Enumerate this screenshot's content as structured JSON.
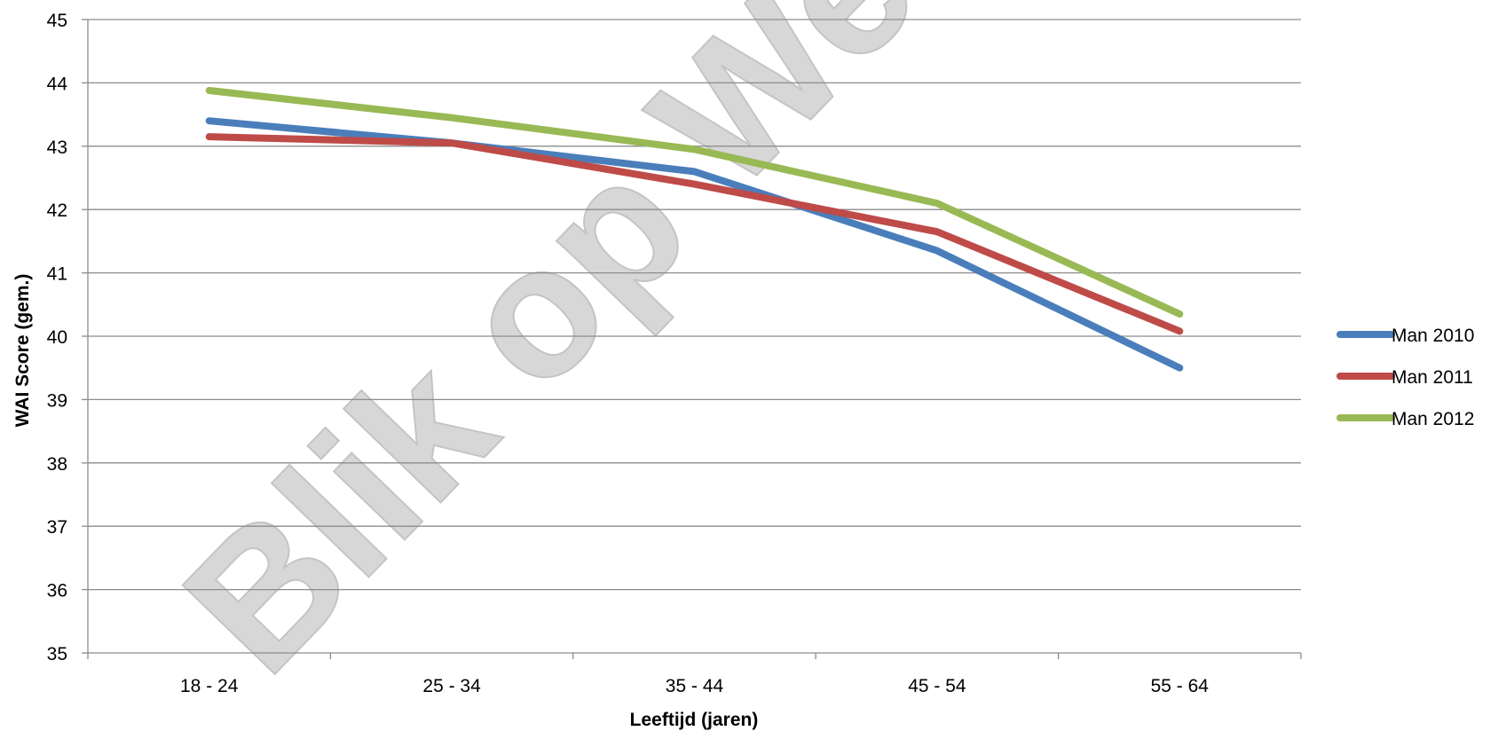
{
  "watermark_text": "Blik op Werk Blik op",
  "chart_data": {
    "type": "line",
    "title": "",
    "xlabel": "Leeftijd (jaren)",
    "ylabel": "WAI Score (gem.)",
    "categories": [
      "18 - 24",
      "25 - 34",
      "35 - 44",
      "45 - 54",
      "55 - 64"
    ],
    "ylim": [
      35,
      45
    ],
    "yticks": [
      "35",
      "36",
      "37",
      "38",
      "39",
      "40",
      "41",
      "42",
      "43",
      "44",
      "45"
    ],
    "grid": true,
    "legend_position": "right",
    "series": [
      {
        "name": "Man 2010",
        "color": "#4a7ebb",
        "values": [
          43.4,
          43.05,
          42.6,
          41.35,
          39.5
        ]
      },
      {
        "name": "Man 2011",
        "color": "#be4b48",
        "values": [
          43.15,
          43.05,
          42.4,
          41.65,
          40.08
        ]
      },
      {
        "name": "Man 2012",
        "color": "#98b954",
        "values": [
          43.88,
          43.45,
          42.95,
          42.1,
          40.35
        ]
      }
    ]
  }
}
